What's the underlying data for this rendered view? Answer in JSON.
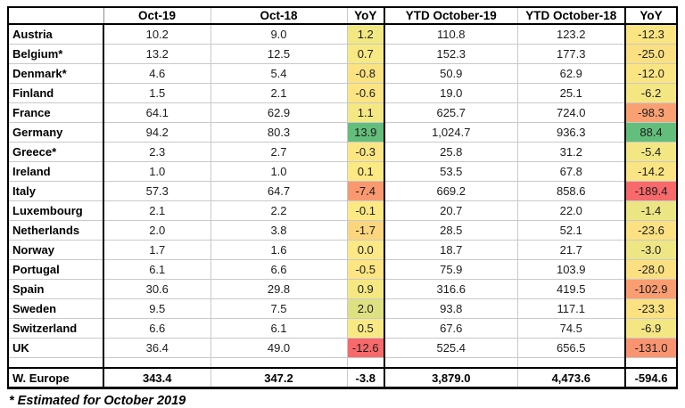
{
  "chart_data": {
    "type": "table",
    "title": "",
    "columns": [
      "",
      "Oct-19",
      "Oct-18",
      "YoY",
      "YTD October-19",
      "YTD October-18",
      "YoY"
    ],
    "color_scale": {
      "high": "#63BE7B",
      "mid": "#FFEB84",
      "low": "#F8696B"
    },
    "rows": [
      {
        "label": "Austria",
        "oct19": "10.2",
        "oct18": "9.0",
        "yoy": "1.2",
        "yoy_color": "#F2E883",
        "ytd19": "110.8",
        "ytd18": "123.2",
        "ytd_yoy": "-12.3",
        "ytd_yoy_color": "#FBE583"
      },
      {
        "label": "Belgium*",
        "oct19": "13.2",
        "oct18": "12.5",
        "yoy": "0.7",
        "yoy_color": "#F8E984",
        "ytd19": "152.3",
        "ytd18": "177.3",
        "ytd_yoy": "-25.0",
        "ytd_yoy_color": "#FBE081"
      },
      {
        "label": "Denmark*",
        "oct19": "4.6",
        "oct18": "5.4",
        "yoy": "-0.8",
        "yoy_color": "#FBE382",
        "ytd19": "50.9",
        "ytd18": "62.9",
        "ytd_yoy": "-12.0",
        "ytd_yoy_color": "#FBE583"
      },
      {
        "label": "Finland",
        "oct19": "1.5",
        "oct18": "2.1",
        "yoy": "-0.6",
        "yoy_color": "#FCE482",
        "ytd19": "19.0",
        "ytd18": "25.1",
        "ytd_yoy": "-6.2",
        "ytd_yoy_color": "#F4E683"
      },
      {
        "label": "France",
        "oct19": "64.1",
        "oct18": "62.9",
        "yoy": "1.1",
        "yoy_color": "#F3E883",
        "ytd19": "625.7",
        "ytd18": "724.0",
        "ytd_yoy": "-98.3",
        "ytd_yoy_color": "#FAA173"
      },
      {
        "label": "Germany",
        "oct19": "94.2",
        "oct18": "80.3",
        "yoy": "13.9",
        "yoy_color": "#63BE7B",
        "ytd19": "1,024.7",
        "ytd18": "936.3",
        "ytd_yoy": "88.4",
        "ytd_yoy_color": "#63BE7B"
      },
      {
        "label": "Greece*",
        "oct19": "2.3",
        "oct18": "2.7",
        "yoy": "-0.3",
        "yoy_color": "#FCE683",
        "ytd19": "25.8",
        "ytd18": "31.2",
        "ytd_yoy": "-5.4",
        "ytd_yoy_color": "#F3E784"
      },
      {
        "label": "Ireland",
        "oct19": "1.0",
        "oct18": "1.0",
        "yoy": "0.1",
        "yoy_color": "#FDE984",
        "ytd19": "53.5",
        "ytd18": "67.8",
        "ytd_yoy": "-14.2",
        "ytd_yoy_color": "#FBE483"
      },
      {
        "label": "Italy",
        "oct19": "57.3",
        "oct18": "64.7",
        "yoy": "-7.4",
        "yoy_color": "#FA996F",
        "ytd19": "669.2",
        "ytd18": "858.6",
        "ytd_yoy": "-189.4",
        "ytd_yoy_color": "#F8696B"
      },
      {
        "label": "Luxembourg",
        "oct19": "2.1",
        "oct18": "2.2",
        "yoy": "-0.1",
        "yoy_color": "#FDE984",
        "ytd19": "20.7",
        "ytd18": "22.0",
        "ytd_yoy": "-1.4",
        "ytd_yoy_color": "#EBE583"
      },
      {
        "label": "Netherlands",
        "oct19": "2.0",
        "oct18": "3.8",
        "yoy": "-1.7",
        "yoy_color": "#FBD67E",
        "ytd19": "28.5",
        "ytd18": "52.1",
        "ytd_yoy": "-23.6",
        "ytd_yoy_color": "#FBE182"
      },
      {
        "label": "Norway",
        "oct19": "1.7",
        "oct18": "1.6",
        "yoy": "0.0",
        "yoy_color": "#FCE884",
        "ytd19": "18.7",
        "ytd18": "21.7",
        "ytd_yoy": "-3.0",
        "ytd_yoy_color": "#EEE684"
      },
      {
        "label": "Portugal",
        "oct19": "6.1",
        "oct18": "6.6",
        "yoy": "-0.5",
        "yoy_color": "#FCE582",
        "ytd19": "75.9",
        "ytd18": "103.9",
        "ytd_yoy": "-28.0",
        "ytd_yoy_color": "#FBE082"
      },
      {
        "label": "Spain",
        "oct19": "30.6",
        "oct18": "29.8",
        "yoy": "0.9",
        "yoy_color": "#F5E883",
        "ytd19": "316.6",
        "ytd18": "419.5",
        "ytd_yoy": "-102.9",
        "ytd_yoy_color": "#FA9D71"
      },
      {
        "label": "Sweden",
        "oct19": "9.5",
        "oct18": "7.5",
        "yoy": "2.0",
        "yoy_color": "#DDE182",
        "ytd19": "93.8",
        "ytd18": "117.1",
        "ytd_yoy": "-23.3",
        "ytd_yoy_color": "#FBE182"
      },
      {
        "label": "Switzerland",
        "oct19": "6.6",
        "oct18": "6.1",
        "yoy": "0.5",
        "yoy_color": "#F9E984",
        "ytd19": "67.6",
        "ytd18": "74.5",
        "ytd_yoy": "-6.9",
        "ytd_yoy_color": "#F4E683"
      },
      {
        "label": "UK",
        "oct19": "36.4",
        "oct18": "49.0",
        "yoy": "-12.6",
        "yoy_color": "#F8696B",
        "ytd19": "525.4",
        "ytd18": "656.5",
        "ytd_yoy": "-131.0",
        "ytd_yoy_color": "#FA9470"
      },
      {
        "spacer": true,
        "label": "",
        "oct19": "",
        "oct18": "",
        "yoy": "",
        "yoy_color": "",
        "ytd19": "",
        "ytd18": "",
        "ytd_yoy": "",
        "ytd_yoy_color": ""
      },
      {
        "total": true,
        "label": "W. Europe",
        "oct19": "343.4",
        "oct18": "347.2",
        "yoy": "-3.8",
        "yoy_color": "",
        "ytd19": "3,879.0",
        "ytd18": "4,473.6",
        "ytd_yoy": "-594.6",
        "ytd_yoy_color": ""
      }
    ],
    "footnote": "* Estimated for October 2019"
  }
}
